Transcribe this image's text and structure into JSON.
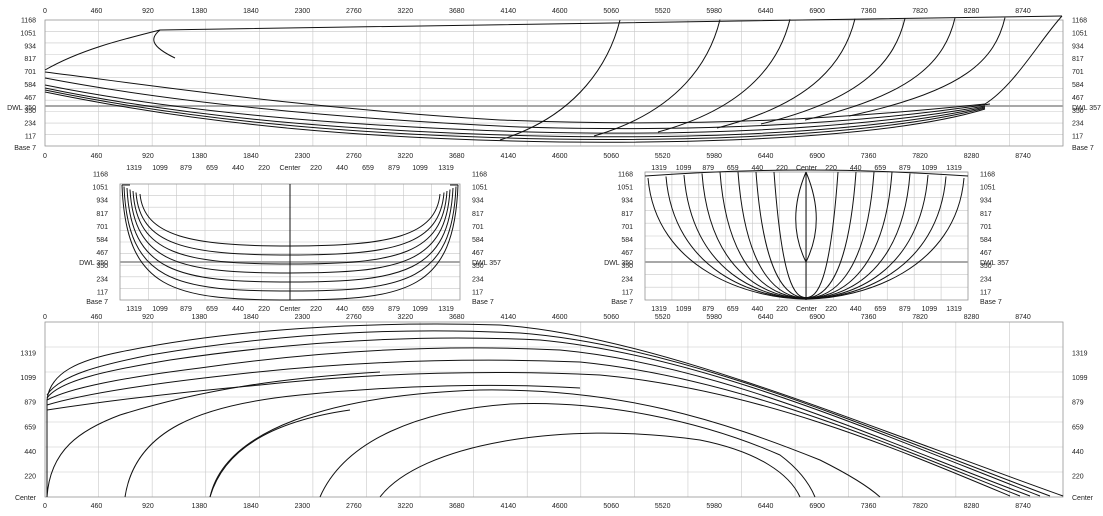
{
  "profile_view": {
    "x_ticks": [
      "0",
      "460",
      "920",
      "1380",
      "1840",
      "2300",
      "2760",
      "3220",
      "3680",
      "4140",
      "4600",
      "5060",
      "5520",
      "5980",
      "6440",
      "6900",
      "7360",
      "7820",
      "8280",
      "8740"
    ],
    "y_ticks": [
      "1168",
      "1051",
      "934",
      "817",
      "701",
      "584",
      "467",
      "350",
      "234",
      "117"
    ],
    "dwl_left": "DWL 350",
    "dwl_right": "DWL 357",
    "base_label": "Base 7"
  },
  "section_views": {
    "x_ticks": [
      "1319",
      "1099",
      "879",
      "659",
      "440",
      "220",
      "Center",
      "220",
      "440",
      "659",
      "879",
      "1099",
      "1319"
    ],
    "y_ticks": [
      "1168",
      "1051",
      "934",
      "817",
      "701",
      "584",
      "467",
      "350",
      "234",
      "117"
    ],
    "dwl_left": "DWL 350",
    "dwl_right": "DWL 357",
    "base_label": "Base 7"
  },
  "plan_view": {
    "x_ticks": [
      "0",
      "460",
      "920",
      "1380",
      "1840",
      "2300",
      "2760",
      "3220",
      "3680",
      "4140",
      "4600",
      "5060",
      "5520",
      "5980",
      "6440",
      "6900",
      "7360",
      "7820",
      "8280",
      "8740"
    ],
    "y_ticks": [
      "1319",
      "1099",
      "879",
      "659",
      "440",
      "220"
    ],
    "center_label": "Center"
  },
  "colors": {
    "grid": "#c8c8c8",
    "dwl": "#a8a8a8",
    "curve": "#111111"
  }
}
